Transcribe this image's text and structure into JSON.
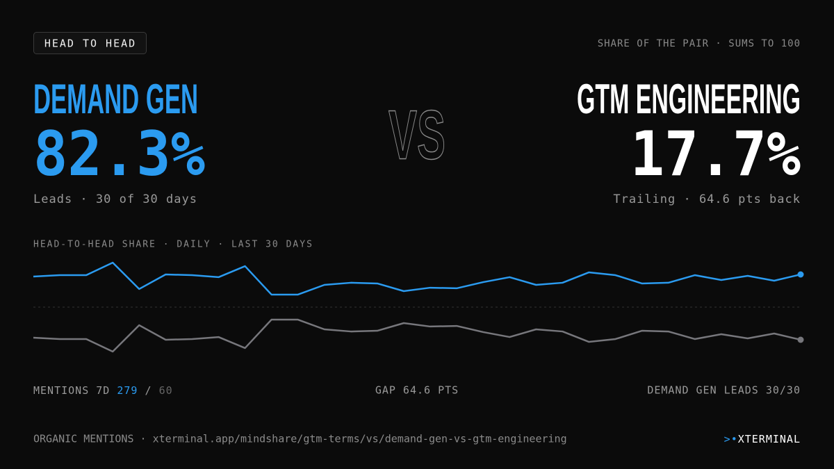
{
  "header": {
    "badge": "HEAD TO HEAD",
    "note": "SHARE OF THE PAIR · SUMS TO 100"
  },
  "left": {
    "name": "DEMAND GEN",
    "share": "82.3%",
    "caption": "Leads · 30 of 30 days"
  },
  "vs": "VS",
  "right": {
    "name": "GTM ENGINEERING",
    "share": "17.7%",
    "caption": "Trailing · 64.6 pts back"
  },
  "chart_data": {
    "type": "line",
    "title": "HEAD-TO-HEAD SHARE · DAILY · LAST 30 DAYS",
    "categories": [
      null,
      null,
      null,
      null,
      null,
      null,
      null,
      null,
      null,
      null,
      null,
      null,
      null,
      null,
      null,
      null,
      null,
      null,
      null,
      null,
      null,
      null,
      null,
      null,
      null,
      null,
      null,
      null,
      null,
      null
    ],
    "series": [
      {
        "color": "#2b9bf0",
        "values": [
          80.2,
          81.6,
          81.6,
          94.0,
          67.9,
          82.3,
          81.6,
          79.6,
          90.5,
          62.4,
          62.4,
          72.0,
          74.1,
          73.4,
          65.8,
          69.2,
          68.6,
          74.7,
          79.6,
          72.0,
          74.1,
          84.4,
          81.6,
          73.4,
          74.1,
          81.6,
          76.8,
          80.9,
          76.1,
          82.3
        ]
      },
      {
        "color": "#77777c",
        "values": [
          19.8,
          18.4,
          18.4,
          6.0,
          32.1,
          17.7,
          18.4,
          20.4,
          9.5,
          37.6,
          37.6,
          28.0,
          25.9,
          26.6,
          34.2,
          30.8,
          31.4,
          25.3,
          20.4,
          28.0,
          25.9,
          15.6,
          18.4,
          26.6,
          25.9,
          18.4,
          23.2,
          19.1,
          23.9,
          17.7
        ]
      }
    ],
    "ylim": [
      10,
      100
    ],
    "midline": 50
  },
  "stats": {
    "mentions_label": "MENTIONS 7D",
    "mentions_left": 279,
    "separator": "/",
    "mentions_right": 60,
    "gap": "GAP 64.6 PTS",
    "leader": "DEMAND GEN LEADS 30/30"
  },
  "footer": {
    "source": "ORGANIC MENTIONS · xterminal.app/mindshare/gtm-terms/vs/demand-gen-vs-gtm-engineering",
    "prompt": ">",
    "dot": "•",
    "brand": "XTERMINAL"
  }
}
